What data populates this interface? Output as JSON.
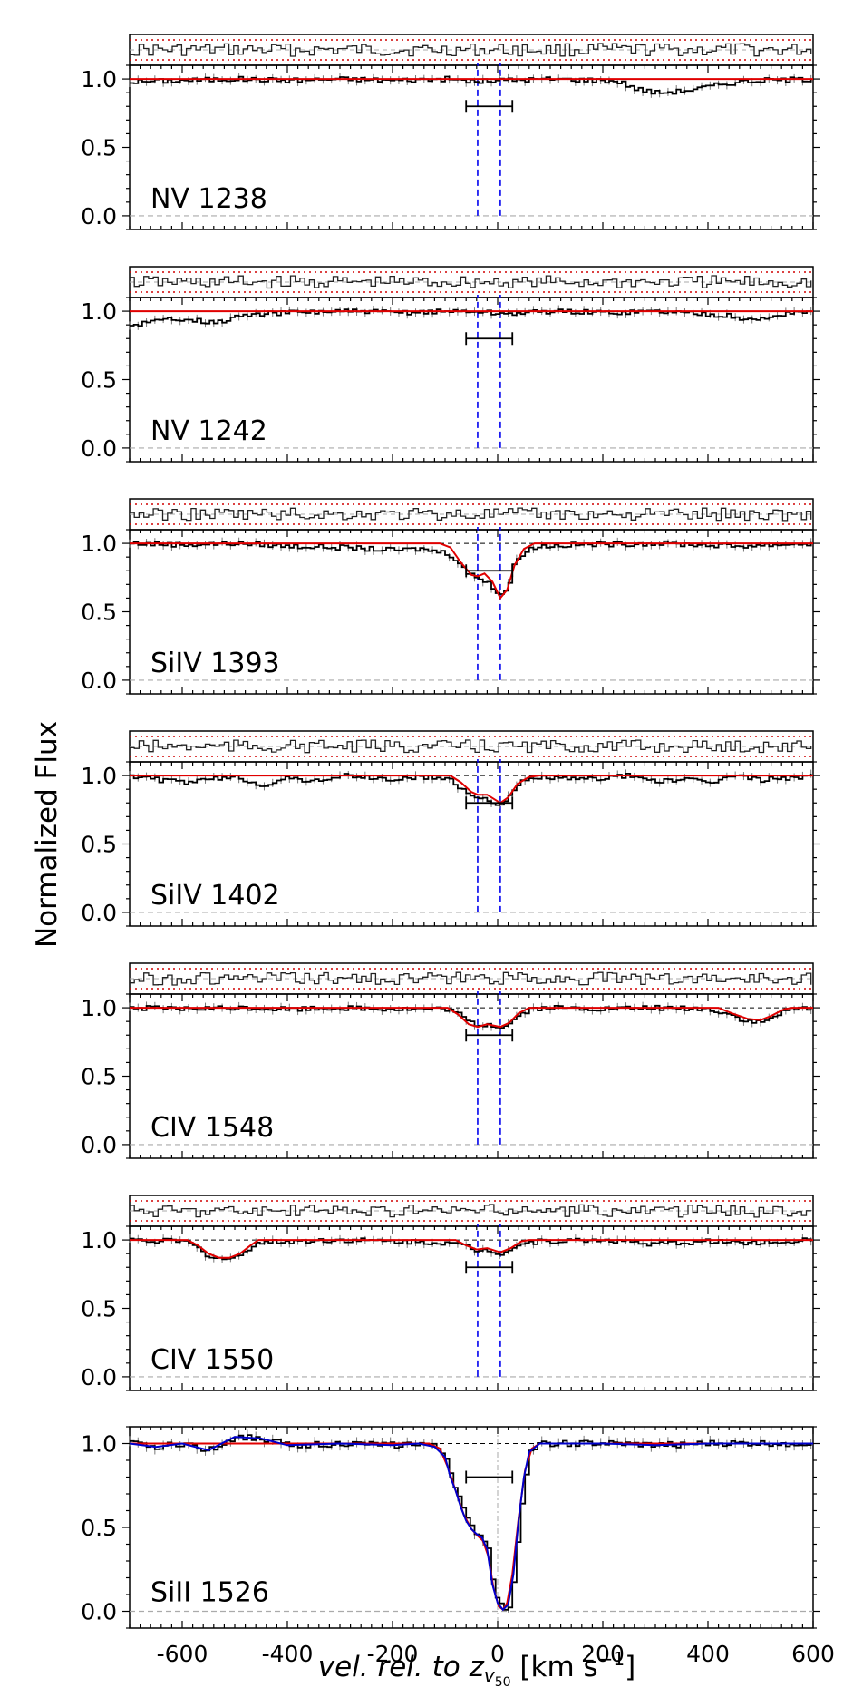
{
  "chart_data": {
    "type": "line",
    "ylabel": "Normalized Flux",
    "xlabel_parts": {
      "italic": "vel. rel. to z",
      "sub": "v",
      "subsub": "50",
      "unit_pre": " [km s",
      "sup": "−1",
      "unit_post": "]"
    },
    "xlim": [
      -700,
      600
    ],
    "xticks": [
      -600,
      -400,
      -200,
      0,
      200,
      400,
      600
    ],
    "xtick_labels": [
      "-600",
      "-400",
      "-200",
      "0",
      "200",
      "400",
      "600"
    ],
    "ylim": [
      -0.1,
      1.1
    ],
    "yticks": [
      0.0,
      0.5,
      1.0
    ],
    "ytick_labels": [
      "0.0",
      "0.5",
      "1.0"
    ],
    "component_velocities": [
      -38,
      5
    ],
    "velocity_interval": [
      -60,
      28
    ],
    "colors": {
      "data": "#000000",
      "error": "#777777",
      "fit": "#e00000",
      "fit_low_ion": "#0000cc",
      "components": "#0000ee",
      "residual_band": "#d00000",
      "zero_line": "#aaaaaa"
    },
    "panels": [
      {
        "label": "NV 1238",
        "bar_y": 0.8,
        "continuum": 1.0,
        "profile": [
          [
            -700,
            0.98
          ],
          [
            -600,
            0.99
          ],
          [
            -500,
            1.0
          ],
          [
            -400,
            0.99
          ],
          [
            -300,
            1.0
          ],
          [
            -200,
            0.99
          ],
          [
            -100,
            1.0
          ],
          [
            -40,
            0.98
          ],
          [
            0,
            0.99
          ],
          [
            100,
            1.0
          ],
          [
            200,
            0.99
          ],
          [
            230,
            0.98
          ],
          [
            260,
            0.93
          ],
          [
            300,
            0.9
          ],
          [
            340,
            0.91
          ],
          [
            380,
            0.93
          ],
          [
            420,
            0.96
          ],
          [
            460,
            0.98
          ],
          [
            500,
            0.99
          ],
          [
            600,
            1.0
          ]
        ],
        "fit": []
      },
      {
        "label": "NV 1242",
        "bar_y": 0.8,
        "continuum": 1.0,
        "profile": [
          [
            -700,
            0.9
          ],
          [
            -660,
            0.92
          ],
          [
            -620,
            0.95
          ],
          [
            -580,
            0.94
          ],
          [
            -540,
            0.91
          ],
          [
            -500,
            0.96
          ],
          [
            -450,
            0.98
          ],
          [
            -400,
            0.99
          ],
          [
            -300,
            1.0
          ],
          [
            -200,
            0.99
          ],
          [
            -100,
            1.0
          ],
          [
            -40,
            1.0
          ],
          [
            0,
            0.98
          ],
          [
            100,
            1.0
          ],
          [
            200,
            0.99
          ],
          [
            300,
            1.0
          ],
          [
            400,
            0.98
          ],
          [
            450,
            0.96
          ],
          [
            480,
            0.93
          ],
          [
            510,
            0.95
          ],
          [
            550,
            0.99
          ],
          [
            600,
            1.0
          ]
        ],
        "fit": []
      },
      {
        "label": "SiIV 1393",
        "bar_y": 0.8,
        "continuum": 1.0,
        "profile": [
          [
            -700,
            1.0
          ],
          [
            -600,
            0.99
          ],
          [
            -500,
            1.0
          ],
          [
            -400,
            0.98
          ],
          [
            -300,
            0.97
          ],
          [
            -200,
            0.95
          ],
          [
            -150,
            0.96
          ],
          [
            -100,
            0.93
          ],
          [
            -80,
            0.88
          ],
          [
            -60,
            0.78
          ],
          [
            -40,
            0.75
          ],
          [
            -20,
            0.72
          ],
          [
            0,
            0.62
          ],
          [
            10,
            0.64
          ],
          [
            20,
            0.72
          ],
          [
            30,
            0.86
          ],
          [
            50,
            0.95
          ],
          [
            80,
            0.98
          ],
          [
            150,
            0.99
          ],
          [
            300,
            1.0
          ],
          [
            450,
            0.98
          ],
          [
            600,
            1.0
          ]
        ],
        "fit": [
          [
            -700,
            1.0
          ],
          [
            -110,
            1.0
          ],
          [
            -90,
            0.97
          ],
          [
            -70,
            0.86
          ],
          [
            -50,
            0.77
          ],
          [
            -38,
            0.76
          ],
          [
            -25,
            0.78
          ],
          [
            -10,
            0.72
          ],
          [
            5,
            0.6
          ],
          [
            18,
            0.66
          ],
          [
            32,
            0.84
          ],
          [
            50,
            0.96
          ],
          [
            70,
            1.0
          ],
          [
            600,
            1.0
          ]
        ]
      },
      {
        "label": "SiIV 1402",
        "bar_y": 0.8,
        "continuum": 1.0,
        "profile": [
          [
            -700,
            1.0
          ],
          [
            -650,
            0.97
          ],
          [
            -600,
            0.95
          ],
          [
            -550,
            0.97
          ],
          [
            -500,
            0.99
          ],
          [
            -450,
            0.93
          ],
          [
            -400,
            0.98
          ],
          [
            -350,
            0.96
          ],
          [
            -300,
            1.0
          ],
          [
            -200,
            0.97
          ],
          [
            -150,
            0.99
          ],
          [
            -100,
            0.98
          ],
          [
            -80,
            0.93
          ],
          [
            -60,
            0.87
          ],
          [
            -40,
            0.84
          ],
          [
            -20,
            0.83
          ],
          [
            0,
            0.78
          ],
          [
            20,
            0.84
          ],
          [
            40,
            0.95
          ],
          [
            80,
            0.99
          ],
          [
            150,
            0.97
          ],
          [
            250,
            1.0
          ],
          [
            300,
            0.96
          ],
          [
            350,
            0.97
          ],
          [
            400,
            0.95
          ],
          [
            450,
            1.0
          ],
          [
            500,
            0.97
          ],
          [
            600,
            1.0
          ]
        ],
        "fit": [
          [
            -700,
            1.0
          ],
          [
            -90,
            1.0
          ],
          [
            -70,
            0.95
          ],
          [
            -50,
            0.88
          ],
          [
            -38,
            0.86
          ],
          [
            -20,
            0.86
          ],
          [
            5,
            0.8
          ],
          [
            20,
            0.84
          ],
          [
            38,
            0.94
          ],
          [
            60,
            0.99
          ],
          [
            80,
            1.0
          ],
          [
            600,
            1.0
          ]
        ]
      },
      {
        "label": "CIV 1548",
        "bar_y": 0.8,
        "continuum": 1.0,
        "profile": [
          [
            -700,
            1.0
          ],
          [
            -600,
            0.99
          ],
          [
            -500,
            1.0
          ],
          [
            -400,
            0.99
          ],
          [
            -300,
            1.0
          ],
          [
            -200,
            0.99
          ],
          [
            -100,
            0.99
          ],
          [
            -80,
            0.96
          ],
          [
            -60,
            0.9
          ],
          [
            -40,
            0.87
          ],
          [
            -20,
            0.88
          ],
          [
            0,
            0.86
          ],
          [
            20,
            0.88
          ],
          [
            35,
            0.94
          ],
          [
            60,
            0.99
          ],
          [
            100,
            1.0
          ],
          [
            200,
            0.99
          ],
          [
            300,
            1.0
          ],
          [
            400,
            0.99
          ],
          [
            440,
            0.95
          ],
          [
            470,
            0.9
          ],
          [
            500,
            0.89
          ],
          [
            530,
            0.95
          ],
          [
            560,
            0.99
          ],
          [
            600,
            1.0
          ]
        ],
        "fit": [
          [
            -700,
            1.0
          ],
          [
            -95,
            1.0
          ],
          [
            -75,
            0.95
          ],
          [
            -55,
            0.88
          ],
          [
            -38,
            0.86
          ],
          [
            -20,
            0.88
          ],
          [
            5,
            0.86
          ],
          [
            22,
            0.89
          ],
          [
            40,
            0.96
          ],
          [
            60,
            1.0
          ],
          [
            420,
            1.0
          ],
          [
            445,
            0.96
          ],
          [
            475,
            0.92
          ],
          [
            500,
            0.91
          ],
          [
            520,
            0.94
          ],
          [
            545,
            0.99
          ],
          [
            560,
            1.0
          ],
          [
            600,
            1.0
          ]
        ]
      },
      {
        "label": "CIV 1550",
        "bar_y": 0.8,
        "continuum": 1.0,
        "profile": [
          [
            -700,
            1.0
          ],
          [
            -600,
            0.99
          ],
          [
            -580,
            0.96
          ],
          [
            -560,
            0.9
          ],
          [
            -540,
            0.87
          ],
          [
            -520,
            0.86
          ],
          [
            -500,
            0.87
          ],
          [
            -480,
            0.93
          ],
          [
            -460,
            0.98
          ],
          [
            -400,
            0.99
          ],
          [
            -300,
            1.0
          ],
          [
            -200,
            0.99
          ],
          [
            -100,
            0.98
          ],
          [
            -60,
            0.95
          ],
          [
            -40,
            0.92
          ],
          [
            -20,
            0.93
          ],
          [
            0,
            0.9
          ],
          [
            20,
            0.93
          ],
          [
            40,
            0.97
          ],
          [
            80,
            0.99
          ],
          [
            200,
            1.0
          ],
          [
            300,
            0.97
          ],
          [
            400,
            0.99
          ],
          [
            500,
            0.98
          ],
          [
            600,
            1.0
          ]
        ],
        "fit": [
          [
            -700,
            1.0
          ],
          [
            -590,
            1.0
          ],
          [
            -570,
            0.96
          ],
          [
            -550,
            0.9
          ],
          [
            -530,
            0.87
          ],
          [
            -510,
            0.87
          ],
          [
            -490,
            0.9
          ],
          [
            -470,
            0.96
          ],
          [
            -455,
            1.0
          ],
          [
            -80,
            1.0
          ],
          [
            -60,
            0.96
          ],
          [
            -40,
            0.93
          ],
          [
            -20,
            0.94
          ],
          [
            5,
            0.91
          ],
          [
            25,
            0.94
          ],
          [
            45,
            0.99
          ],
          [
            60,
            1.0
          ],
          [
            600,
            1.0
          ]
        ]
      },
      {
        "label": "SiII 1526",
        "bar_y": 0.8,
        "continuum": 1.0,
        "profile": [
          [
            -700,
            1.0
          ],
          [
            -650,
            0.98
          ],
          [
            -600,
            1.0
          ],
          [
            -550,
            0.96
          ],
          [
            -500,
            1.04
          ],
          [
            -450,
            1.03
          ],
          [
            -400,
            0.99
          ],
          [
            -300,
            1.0
          ],
          [
            -200,
            0.99
          ],
          [
            -150,
            1.0
          ],
          [
            -120,
            0.98
          ],
          [
            -100,
            0.92
          ],
          [
            -90,
            0.8
          ],
          [
            -80,
            0.72
          ],
          [
            -70,
            0.62
          ],
          [
            -60,
            0.54
          ],
          [
            -50,
            0.49
          ],
          [
            -40,
            0.46
          ],
          [
            -30,
            0.44
          ],
          [
            -20,
            0.37
          ],
          [
            -10,
            0.16
          ],
          [
            0,
            0.05
          ],
          [
            10,
            0.01
          ],
          [
            20,
            0.04
          ],
          [
            30,
            0.22
          ],
          [
            40,
            0.55
          ],
          [
            50,
            0.8
          ],
          [
            60,
            0.95
          ],
          [
            80,
            1.0
          ],
          [
            200,
            1.0
          ],
          [
            300,
            0.99
          ],
          [
            400,
            1.0
          ],
          [
            500,
            1.0
          ],
          [
            600,
            1.0
          ]
        ],
        "fit": [
          [
            -700,
            1.0
          ],
          [
            -130,
            1.0
          ],
          [
            -110,
            0.97
          ],
          [
            -95,
            0.86
          ],
          [
            -80,
            0.72
          ],
          [
            -65,
            0.58
          ],
          [
            -50,
            0.49
          ],
          [
            -38,
            0.45
          ],
          [
            -28,
            0.42
          ],
          [
            -18,
            0.33
          ],
          [
            -8,
            0.14
          ],
          [
            2,
            0.03
          ],
          [
            10,
            0.01
          ],
          [
            18,
            0.05
          ],
          [
            28,
            0.22
          ],
          [
            40,
            0.56
          ],
          [
            52,
            0.84
          ],
          [
            65,
            0.97
          ],
          [
            80,
            1.0
          ],
          [
            600,
            1.0
          ]
        ]
      }
    ]
  }
}
